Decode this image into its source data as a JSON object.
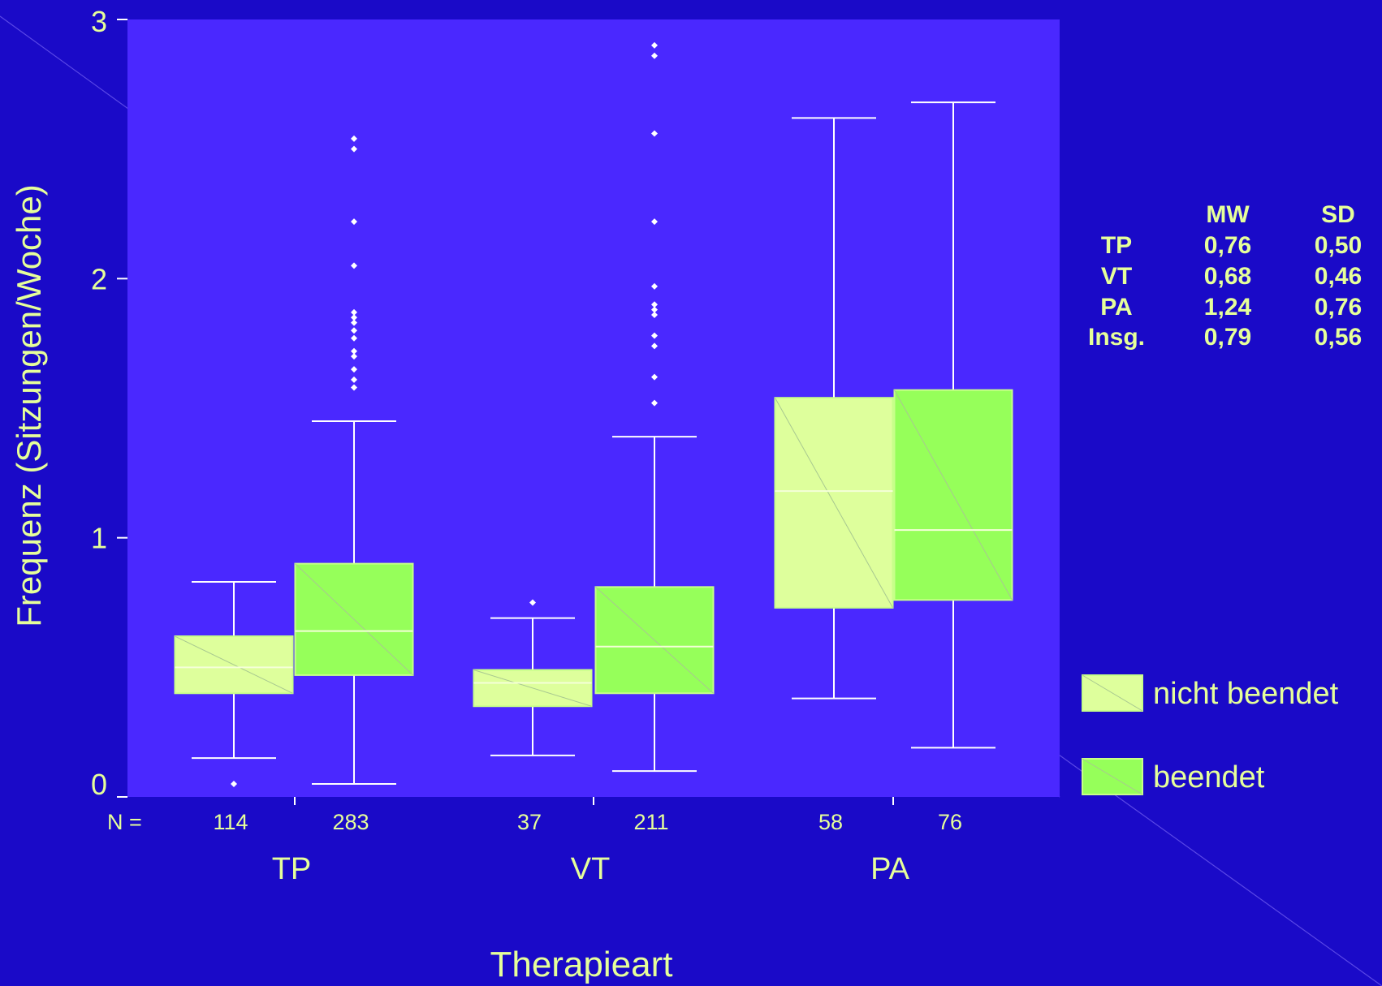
{
  "chart_data": {
    "type": "boxplot",
    "ylabel": "Frequenz (Sitzungen/Woche)",
    "xlabel": "Therapieart",
    "ylim": [
      0,
      3
    ],
    "yticks": [
      "0",
      "1",
      "2",
      "3"
    ],
    "n_label": "N =",
    "groups": [
      "TP",
      "VT",
      "PA"
    ],
    "series": [
      {
        "name": "nicht beendet",
        "color": "#deff9c"
      },
      {
        "name": "beendet",
        "color": "#96ff5a"
      }
    ],
    "boxes": [
      {
        "group": "TP",
        "series": "nicht beendet",
        "n": "114",
        "whisker_low": 0.15,
        "q1": 0.4,
        "median": 0.5,
        "q3": 0.62,
        "whisker_high": 0.83,
        "outliers": [
          0.05
        ]
      },
      {
        "group": "TP",
        "series": "beendet",
        "n": "283",
        "whisker_low": 0.05,
        "q1": 0.47,
        "median": 0.64,
        "q3": 0.9,
        "whisker_high": 1.45,
        "outliers": [
          1.58,
          1.61,
          1.65,
          1.7,
          1.72,
          1.77,
          1.8,
          1.83,
          1.85,
          1.87,
          2.05,
          2.22,
          2.5,
          2.54
        ]
      },
      {
        "group": "VT",
        "series": "nicht beendet",
        "n": "37",
        "whisker_low": 0.16,
        "q1": 0.35,
        "median": 0.44,
        "q3": 0.49,
        "whisker_high": 0.69,
        "outliers": [
          0.75
        ]
      },
      {
        "group": "VT",
        "series": "beendet",
        "n": "211",
        "whisker_low": 0.1,
        "q1": 0.4,
        "median": 0.58,
        "q3": 0.81,
        "whisker_high": 1.39,
        "outliers": [
          1.52,
          1.62,
          1.74,
          1.78,
          1.86,
          1.88,
          1.9,
          1.97,
          2.22,
          2.56,
          2.86,
          2.9
        ]
      },
      {
        "group": "PA",
        "series": "nicht beendet",
        "n": "58",
        "whisker_low": 0.38,
        "q1": 0.73,
        "median": 1.18,
        "q3": 1.54,
        "whisker_high": 2.62,
        "outliers": []
      },
      {
        "group": "PA",
        "series": "beendet",
        "n": "76",
        "whisker_low": 0.19,
        "q1": 0.76,
        "median": 1.03,
        "q3": 1.57,
        "whisker_high": 2.68,
        "outliers": []
      }
    ],
    "stats_table": {
      "headers": [
        "",
        "MW",
        "SD"
      ],
      "rows": [
        [
          "TP",
          "0,76",
          "0,50"
        ],
        [
          "VT",
          "0,68",
          "0,46"
        ],
        [
          "PA",
          "1,24",
          "0,76"
        ],
        [
          "Insg.",
          "0,79",
          "0,56"
        ]
      ]
    },
    "colors": {
      "background": "#1a0ac8",
      "plot_area": "#4a28ff",
      "text": "#e6ff9a",
      "lines": "#ffffff"
    }
  }
}
